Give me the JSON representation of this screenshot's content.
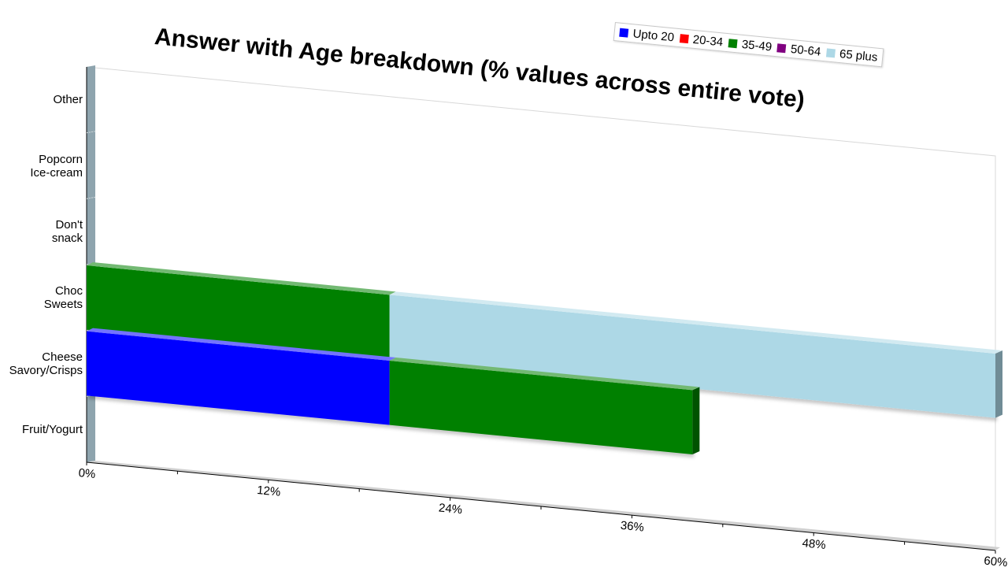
{
  "chart_data": {
    "type": "bar",
    "orientation": "horizontal",
    "stacked": true,
    "title": "Answer with Age breakdown (% values across entire vote)",
    "categories": [
      [
        "Other"
      ],
      [
        "Popcorn",
        "Ice-cream"
      ],
      [
        "Don't",
        "snack"
      ],
      [
        "Choc",
        "Sweets"
      ],
      [
        "Cheese",
        "Savory/Crisps"
      ],
      [
        "Fruit/Yogurt"
      ]
    ],
    "series": [
      {
        "name": "Upto 20",
        "color": "#0000ff",
        "values": [
          0,
          0,
          0,
          0,
          20,
          0
        ]
      },
      {
        "name": "20-34",
        "color": "#ff0000",
        "values": [
          0,
          0,
          0,
          0,
          0,
          0
        ]
      },
      {
        "name": "35-49",
        "color": "#008000",
        "values": [
          0,
          0,
          0,
          20,
          20,
          0
        ]
      },
      {
        "name": "50-64",
        "color": "#800080",
        "values": [
          0,
          0,
          0,
          0,
          0,
          0
        ]
      },
      {
        "name": "65 plus",
        "color": "#add8e6",
        "values": [
          0,
          0,
          0,
          40,
          0,
          0
        ]
      }
    ],
    "xlim": [
      0,
      60
    ],
    "xticks": [
      0,
      12,
      24,
      36,
      48,
      60
    ],
    "tick_labels": [
      "0%",
      "12%",
      "24%",
      "36%",
      "48%",
      "60%"
    ],
    "legend_position": "top-right",
    "grid": false
  }
}
